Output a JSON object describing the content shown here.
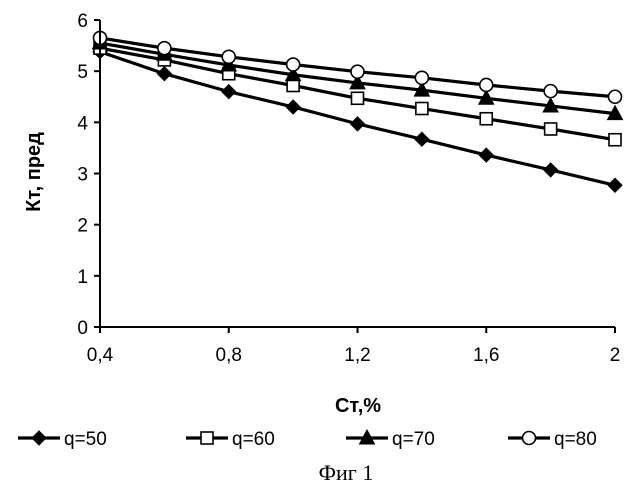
{
  "chart_data": {
    "type": "line",
    "xlabel": "Ст,%",
    "ylabel": "Кт, пред",
    "xlim": [
      0.4,
      2.0
    ],
    "ylim": [
      0,
      6
    ],
    "x_ticks": [
      "0,4",
      "0,8",
      "1,2",
      "1,6",
      "2"
    ],
    "y_ticks": [
      "0",
      "1",
      "2",
      "3",
      "4",
      "5",
      "6"
    ],
    "grid": false,
    "legend_position": "bottom",
    "x": [
      0.4,
      0.6,
      0.8,
      1.0,
      1.2,
      1.4,
      1.6,
      1.8,
      2.0
    ],
    "series": [
      {
        "name": "q=50",
        "marker": "diamond-filled",
        "values": [
          5.38,
          4.95,
          4.6,
          4.3,
          3.97,
          3.67,
          3.36,
          3.07,
          2.77
        ]
      },
      {
        "name": "q=60",
        "marker": "square-open",
        "values": [
          5.45,
          5.22,
          4.95,
          4.72,
          4.47,
          4.27,
          4.07,
          3.87,
          3.66
        ]
      },
      {
        "name": "q=70",
        "marker": "triangle-filled",
        "values": [
          5.55,
          5.33,
          5.12,
          4.93,
          4.77,
          4.63,
          4.47,
          4.32,
          4.17
        ]
      },
      {
        "name": "q=80",
        "marker": "circle-open",
        "values": [
          5.65,
          5.45,
          5.28,
          5.13,
          4.99,
          4.87,
          4.73,
          4.61,
          4.5
        ]
      }
    ],
    "caption": "Фиг 1"
  }
}
